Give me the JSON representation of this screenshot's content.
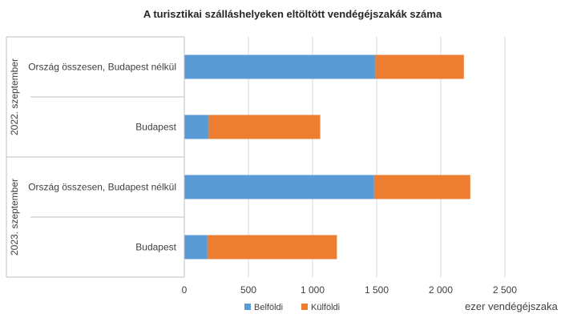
{
  "chart_data": {
    "type": "bar",
    "orientation": "horizontal",
    "stacked": true,
    "title": "A turisztikai szálláshelyeken eltöltött vendégéjszakák száma",
    "xlabel": "ezer vendégéjszaka",
    "xlim": [
      0,
      2500
    ],
    "xticks": [
      0,
      500,
      1000,
      1500,
      2000,
      2500
    ],
    "xtick_labels": [
      "0",
      "500",
      "1 000",
      "1 500",
      "2 000",
      "2 500"
    ],
    "grid": true,
    "legend_position": "bottom",
    "groups": [
      {
        "label": "2022. szeptember",
        "categories": [
          "Ország összesen, Budapest nélkül",
          "Budapest"
        ]
      },
      {
        "label": "2023. szeptember",
        "categories": [
          "Ország összesen, Budapest nélkül",
          "Budapest"
        ]
      }
    ],
    "series": [
      {
        "name": "Belföldi",
        "color": "#5b9bd5",
        "values": [
          1490,
          190,
          1480,
          180
        ]
      },
      {
        "name": "Külföldi",
        "color": "#ed7d31",
        "values": [
          690,
          870,
          750,
          1010
        ]
      }
    ]
  }
}
